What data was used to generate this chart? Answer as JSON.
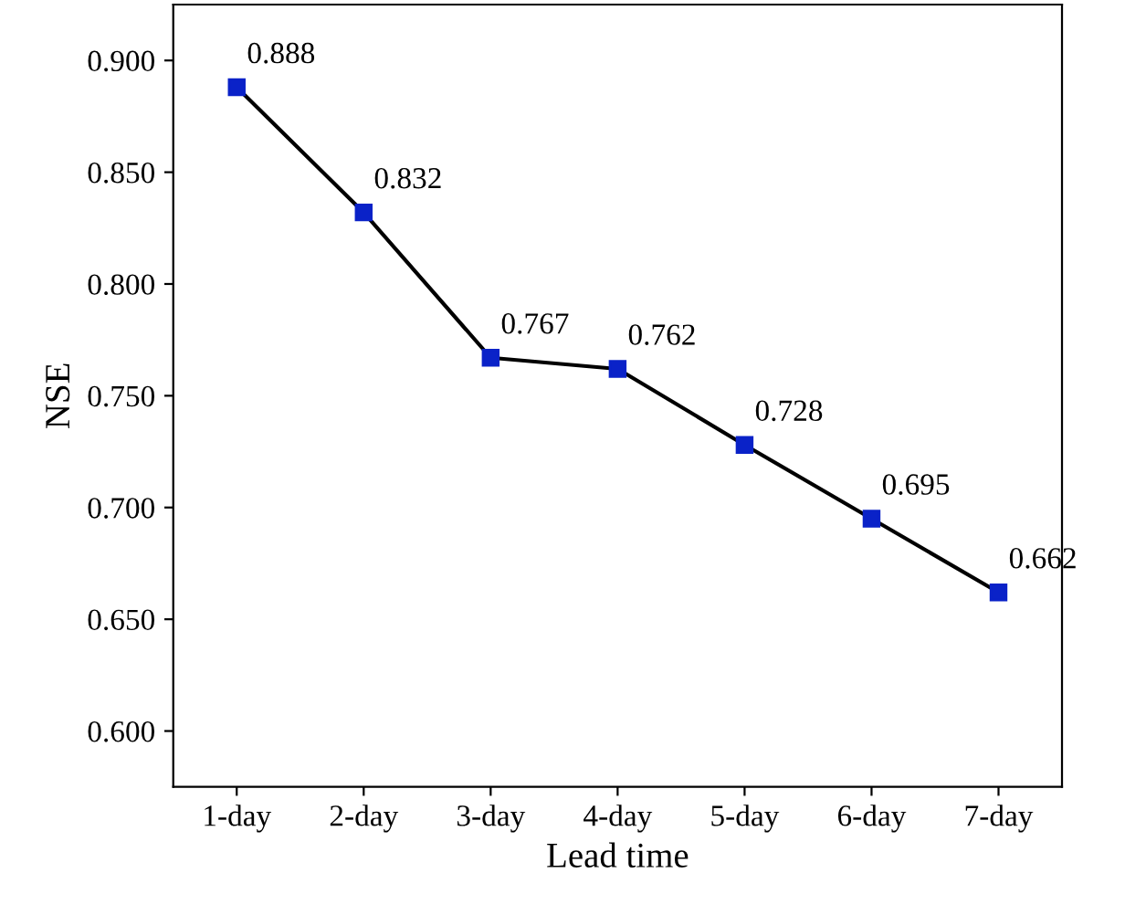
{
  "chart_data": {
    "type": "line",
    "xlabel": "Lead time",
    "ylabel": "NSE",
    "categories": [
      "1-day",
      "2-day",
      "3-day",
      "4-day",
      "5-day",
      "6-day",
      "7-day"
    ],
    "series": [
      {
        "color": "#0a22c8",
        "values": [
          0.888,
          0.832,
          0.767,
          0.762,
          0.728,
          0.695,
          0.662
        ]
      }
    ],
    "ylim": [
      0.575,
      0.925
    ],
    "yticks": [
      {
        "value": 0.6,
        "label": "0.600"
      },
      {
        "value": 0.65,
        "label": "0.650"
      },
      {
        "value": 0.7,
        "label": "0.700"
      },
      {
        "value": 0.75,
        "label": "0.750"
      },
      {
        "value": 0.8,
        "label": "0.800"
      },
      {
        "value": 0.85,
        "label": "0.850"
      },
      {
        "value": 0.9,
        "label": "0.900"
      }
    ],
    "data_labels": true,
    "grid": false,
    "marker": "square",
    "line_style": "solid"
  }
}
